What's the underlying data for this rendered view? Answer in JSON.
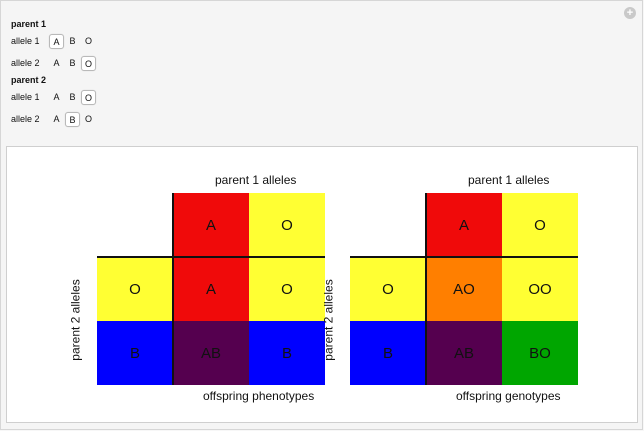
{
  "controls": {
    "parent1": {
      "title": "parent 1",
      "allele1": {
        "label": "allele 1",
        "options": [
          "A",
          "B",
          "O"
        ],
        "selected": "A"
      },
      "allele2": {
        "label": "allele 2",
        "options": [
          "A",
          "B",
          "O"
        ],
        "selected": "O"
      }
    },
    "parent2": {
      "title": "parent 2",
      "allele1": {
        "label": "allele 1",
        "options": [
          "A",
          "B",
          "O"
        ],
        "selected": "O"
      },
      "allele2": {
        "label": "allele 2",
        "options": [
          "A",
          "B",
          "O"
        ],
        "selected": "B"
      }
    }
  },
  "phenotypes": {
    "top_label": "parent 1 alleles",
    "side_label": "parent 2 alleles",
    "bottom_label": "offspring phenotypes",
    "header_row": [
      {
        "text": "A",
        "color": "#f00a0a"
      },
      {
        "text": "O",
        "color": "#ffff33"
      }
    ],
    "header_col": [
      {
        "text": "O",
        "color": "#ffff33"
      },
      {
        "text": "B",
        "color": "#0000ff"
      }
    ],
    "cells": [
      [
        {
          "text": "A",
          "color": "#f00a0a"
        },
        {
          "text": "O",
          "color": "#ffff33"
        }
      ],
      [
        {
          "text": "AB",
          "color": "#55004f"
        },
        {
          "text": "B",
          "color": "#0000ff"
        }
      ]
    ]
  },
  "genotypes": {
    "top_label": "parent 1 alleles",
    "side_label": "parent 2 alleles",
    "bottom_label": "offspring genotypes",
    "header_row": [
      {
        "text": "A",
        "color": "#f00a0a"
      },
      {
        "text": "O",
        "color": "#ffff33"
      }
    ],
    "header_col": [
      {
        "text": "O",
        "color": "#ffff33"
      },
      {
        "text": "B",
        "color": "#0000ff"
      }
    ],
    "cells": [
      [
        {
          "text": "AO",
          "color": "#ff7f00"
        },
        {
          "text": "OO",
          "color": "#ffff33"
        }
      ],
      [
        {
          "text": "AB",
          "color": "#55004f"
        },
        {
          "text": "BO",
          "color": "#00a600"
        }
      ]
    ]
  }
}
